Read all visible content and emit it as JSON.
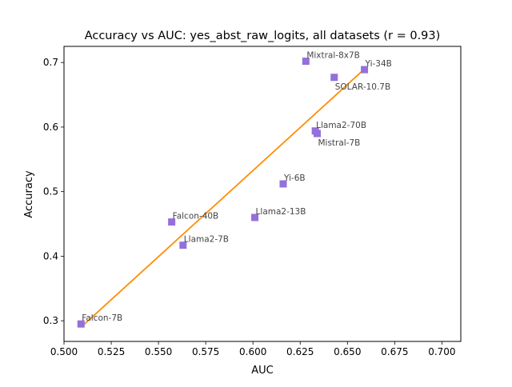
{
  "chart_data": {
    "type": "scatter",
    "title": "Accuracy vs AUC: yes_abst_raw_logits, all datasets (r = 0.93)",
    "xlabel": "AUC",
    "ylabel": "Accuracy",
    "xlim": [
      0.5,
      0.71
    ],
    "ylim": [
      0.268,
      0.725
    ],
    "xticks": [
      0.5,
      0.525,
      0.55,
      0.575,
      0.6,
      0.625,
      0.65,
      0.675,
      0.7
    ],
    "yticks": [
      0.3,
      0.4,
      0.5,
      0.6,
      0.7
    ],
    "xtick_labels": [
      "0.500",
      "0.525",
      "0.550",
      "0.575",
      "0.600",
      "0.625",
      "0.650",
      "0.675",
      "0.700"
    ],
    "ytick_labels": [
      "0.3",
      "0.4",
      "0.5",
      "0.6",
      "0.7"
    ],
    "grid": false,
    "marker_color": "#9370DB",
    "line_color": "#FF8C00",
    "points": [
      {
        "label": "Falcon-7B",
        "x": 0.509,
        "y": 0.295,
        "label_pos": "above"
      },
      {
        "label": "Falcon-40B",
        "x": 0.557,
        "y": 0.453,
        "label_pos": "above"
      },
      {
        "label": "Llama2-7B",
        "x": 0.563,
        "y": 0.417,
        "label_pos": "above"
      },
      {
        "label": "Llama2-13B",
        "x": 0.601,
        "y": 0.46,
        "label_pos": "above"
      },
      {
        "label": "Yi-6B",
        "x": 0.616,
        "y": 0.512,
        "label_pos": "above"
      },
      {
        "label": "Mixtral-8x7B",
        "x": 0.628,
        "y": 0.702,
        "label_pos": "above"
      },
      {
        "label": "Llama2-70B",
        "x": 0.633,
        "y": 0.594,
        "label_pos": "above"
      },
      {
        "label": "Mistral-7B",
        "x": 0.634,
        "y": 0.59,
        "label_pos": "below"
      },
      {
        "label": "SOLAR-10.7B",
        "x": 0.643,
        "y": 0.677,
        "label_pos": "below"
      },
      {
        "label": "Yi-34B",
        "x": 0.659,
        "y": 0.689,
        "label_pos": "above"
      }
    ],
    "fit_line": {
      "x": [
        0.509,
        0.659
      ],
      "y": [
        0.29,
        0.69
      ]
    }
  }
}
